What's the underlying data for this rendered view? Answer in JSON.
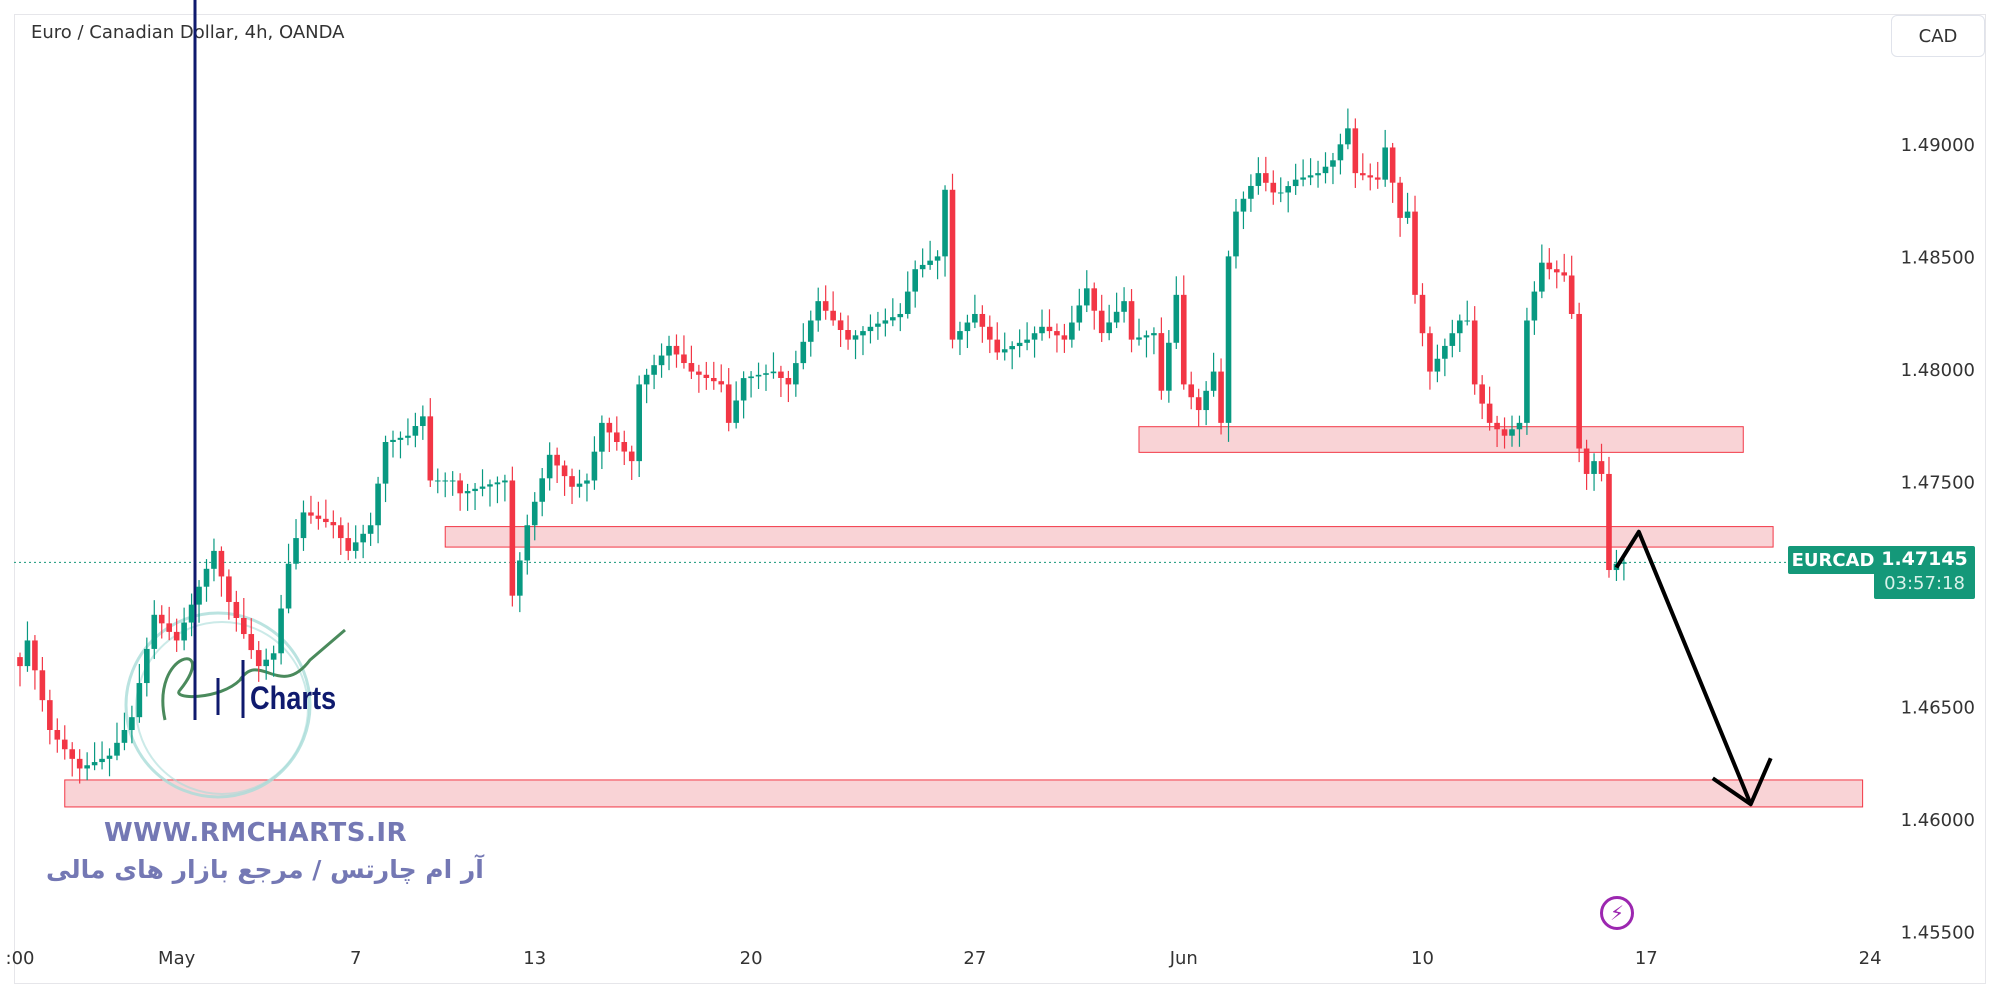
{
  "header": {
    "title": "Euro / Canadian Dollar, 4h, OANDA",
    "currency_button": "CAD"
  },
  "symbol_label": "EURCAD",
  "last_price": "1.47145",
  "countdown": "03:57:18",
  "colors": {
    "up": "#089981",
    "down": "#f23645",
    "zone_fill": "#f9d3d6",
    "zone_border": "#f23645",
    "price_badge": "#149879",
    "arrow": "#000000"
  },
  "watermark": {
    "logo_text": "Charts",
    "url": "WWW.RMCHARTS.IR",
    "tagline": "آر ام چارتس / مرجع بازار های مالی"
  },
  "icons": {
    "bolt": "lightning-icon"
  },
  "chart_data": {
    "type": "candlestick",
    "timeframe": "4h",
    "price_ticks": [
      "1.49000",
      "1.48500",
      "1.48000",
      "1.47500",
      "1.46500",
      "1.46000",
      "1.45500"
    ],
    "price_tick_values": [
      1.49,
      1.485,
      1.48,
      1.475,
      1.465,
      1.46,
      1.455
    ],
    "ylim": [
      1.4545,
      1.4935
    ],
    "date_ticks": [
      {
        "label": ":00",
        "bar": 0
      },
      {
        "label": "May",
        "bar": 21
      },
      {
        "label": "7",
        "bar": 45
      },
      {
        "label": "13",
        "bar": 69
      },
      {
        "label": "20",
        "bar": 98
      },
      {
        "label": "27",
        "bar": 128
      },
      {
        "label": "Jun",
        "bar": 156
      },
      {
        "label": "10",
        "bar": 188
      },
      {
        "label": "17",
        "bar": 218
      },
      {
        "label": "24",
        "bar": 248
      }
    ],
    "closes_by_bar": [
      [
        0,
        1.46684
      ],
      [
        1,
        1.46798
      ],
      [
        4,
        1.464
      ],
      [
        8,
        1.46229
      ],
      [
        12,
        1.46286
      ],
      [
        15,
        1.46457
      ],
      [
        18,
        1.46912
      ],
      [
        21,
        1.46798
      ],
      [
        26,
        1.47196
      ],
      [
        28,
        1.46969
      ],
      [
        32,
        1.46684
      ],
      [
        34,
        1.46741
      ],
      [
        36,
        1.47139
      ],
      [
        38,
        1.47367
      ],
      [
        42,
        1.4731
      ],
      [
        44,
        1.47196
      ],
      [
        47,
        1.4731
      ],
      [
        49,
        1.4768
      ],
      [
        52,
        1.47708
      ],
      [
        54,
        1.47794
      ],
      [
        55,
        1.47509
      ],
      [
        58,
        1.47509
      ],
      [
        59,
        1.47452
      ],
      [
        63,
        1.47492
      ],
      [
        65,
        1.47509
      ],
      [
        66,
        1.46997
      ],
      [
        68,
        1.4731
      ],
      [
        71,
        1.47623
      ],
      [
        74,
        1.47481
      ],
      [
        76,
        1.47509
      ],
      [
        78,
        1.47765
      ],
      [
        82,
        1.47595
      ],
      [
        83,
        1.47936
      ],
      [
        87,
        1.48107
      ],
      [
        90,
        1.47993
      ],
      [
        94,
        1.47936
      ],
      [
        95,
        1.47765
      ],
      [
        97,
        1.47964
      ],
      [
        101,
        1.47993
      ],
      [
        103,
        1.47936
      ],
      [
        106,
        1.4822
      ],
      [
        107,
        1.48306
      ],
      [
        111,
        1.48135
      ],
      [
        114,
        1.48192
      ],
      [
        118,
        1.48249
      ],
      [
        120,
        1.48448
      ],
      [
        123,
        1.48505
      ],
      [
        124,
        1.48801
      ],
      [
        125,
        1.48135
      ],
      [
        128,
        1.48249
      ],
      [
        131,
        1.48078
      ],
      [
        135,
        1.48135
      ],
      [
        137,
        1.48192
      ],
      [
        140,
        1.48135
      ],
      [
        143,
        1.48363
      ],
      [
        145,
        1.48164
      ],
      [
        148,
        1.48306
      ],
      [
        149,
        1.48135
      ],
      [
        152,
        1.48164
      ],
      [
        153,
        1.47908
      ],
      [
        155,
        1.48334
      ],
      [
        156,
        1.47936
      ],
      [
        158,
        1.47822
      ],
      [
        160,
        1.47993
      ],
      [
        161,
        1.47765
      ],
      [
        162,
        1.48505
      ],
      [
        163,
        1.48704
      ],
      [
        166,
        1.48875
      ],
      [
        168,
        1.48789
      ],
      [
        169,
        1.48789
      ],
      [
        171,
        1.48846
      ],
      [
        174,
        1.48875
      ],
      [
        176,
        1.48932
      ],
      [
        178,
        1.49074
      ],
      [
        179,
        1.48875
      ],
      [
        182,
        1.48846
      ],
      [
        183,
        1.48989
      ],
      [
        185,
        1.48676
      ],
      [
        186,
        1.48704
      ],
      [
        187,
        1.48334
      ],
      [
        189,
        1.47993
      ],
      [
        191,
        1.48107
      ],
      [
        193,
        1.4822
      ],
      [
        194,
        1.4822
      ],
      [
        195,
        1.47936
      ],
      [
        197,
        1.47765
      ],
      [
        199,
        1.47708
      ],
      [
        201,
        1.47765
      ],
      [
        202,
        1.4822
      ],
      [
        204,
        1.48477
      ],
      [
        205,
        1.48448
      ],
      [
        207,
        1.4842
      ],
      [
        208,
        1.48249
      ],
      [
        209,
        1.47651
      ],
      [
        210,
        1.47538
      ],
      [
        211,
        1.47595
      ],
      [
        212,
        1.47538
      ],
      [
        213,
        1.47111
      ],
      [
        214,
        1.47139
      ],
      [
        215,
        1.47145
      ]
    ],
    "zones": [
      {
        "from_bar": 150,
        "to_bar": 231,
        "top": 1.47748,
        "bottom": 1.47634
      },
      {
        "from_bar": 57,
        "to_bar": 235,
        "top": 1.47304,
        "bottom": 1.47213
      },
      {
        "from_bar": 6,
        "to_bar": 247,
        "top": 1.46178,
        "bottom": 1.46058
      }
    ],
    "arrow_path": [
      [
        214,
        1.47122
      ],
      [
        217,
        1.47281
      ],
      [
        232,
        1.4607
      ]
    ],
    "current_price_line": 1.47145
  }
}
